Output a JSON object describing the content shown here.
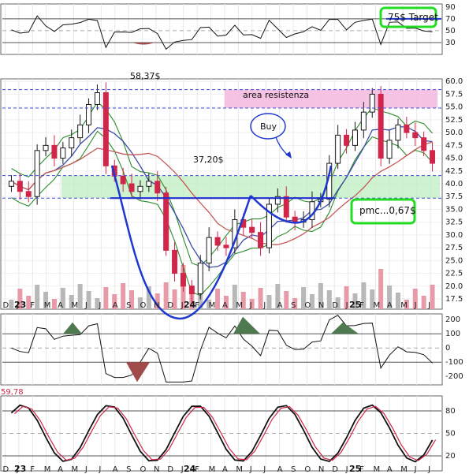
{
  "chart_data": {
    "type": "candlestick",
    "panels": {
      "top_indicator": {
        "yticks": [
          "90",
          "70",
          "50",
          "30"
        ],
        "levels": [
          70,
          30
        ]
      },
      "price": {
        "ylim": [
          15.5,
          60.5
        ],
        "yticks": [
          "60.0",
          "57.5",
          "55.0",
          "52.5",
          "50.0",
          "47.5",
          "45.0",
          "42.5",
          "40.0",
          "37.5",
          "35.0",
          "32.5",
          "30.0",
          "27.5",
          "25.0",
          "22.5",
          "20.0",
          "17.5"
        ],
        "annotations": {
          "high_label": "58,37$",
          "support_label": "37,20$",
          "resistance_label": "area resistenza",
          "buy_label": "Buy",
          "pmc_label": "pmc...0,67$",
          "target_label": "75$ Target"
        },
        "levels": [
          58.4,
          54.8,
          41.6,
          37.2
        ],
        "approx_close_series": [
          40.5,
          38.5,
          37.5,
          46.5,
          47.5,
          45.0,
          47.0,
          49.0,
          51.5,
          55.5,
          57.8,
          43.5,
          41.5,
          40.0,
          38.5,
          39.5,
          40.5,
          38.2,
          27.0,
          22.5,
          20.0,
          18.5,
          24.5,
          29.5,
          28.0,
          27.5,
          33.0,
          31.5,
          30.5,
          27.5,
          36.0,
          37.5,
          33.5,
          32.5,
          33.0,
          36.5,
          37.0,
          44.0,
          49.5,
          47.5,
          50.5,
          54.0,
          57.5,
          45.0,
          48.5,
          51.5,
          50.0,
          49.0,
          46.5,
          44.0
        ]
      },
      "macd": {
        "yticks": [
          "200",
          "100",
          "0",
          "-100",
          "-200"
        ]
      },
      "stochastic": {
        "yticks": [
          "80",
          "50",
          "20"
        ],
        "corner_label": "59,78"
      }
    },
    "x_axis": {
      "months": [
        "D",
        "J",
        "F",
        "M",
        "A",
        "M",
        "J",
        "J",
        "A",
        "S",
        "O",
        "N",
        "D",
        "J",
        "F",
        "M",
        "A",
        "M",
        "J",
        "J",
        "A",
        "S",
        "O",
        "N",
        "D",
        "J",
        "F",
        "M",
        "A",
        "M",
        "J",
        "J"
      ],
      "year_marks": [
        "23",
        "24",
        "25"
      ]
    },
    "colors": {
      "up": "#1a1a1a",
      "down": "#d0264a",
      "ma_fast": "#2c8c2c",
      "ma_mid": "#3c4ca8",
      "ma_slow": "#c45858",
      "resistance_fill": "#f4b8e0",
      "support_fill": "#bfeec0",
      "cup_line": "#1f38d0",
      "highlight_box": "#22dd22",
      "level_line": "#3f4fd8"
    }
  }
}
